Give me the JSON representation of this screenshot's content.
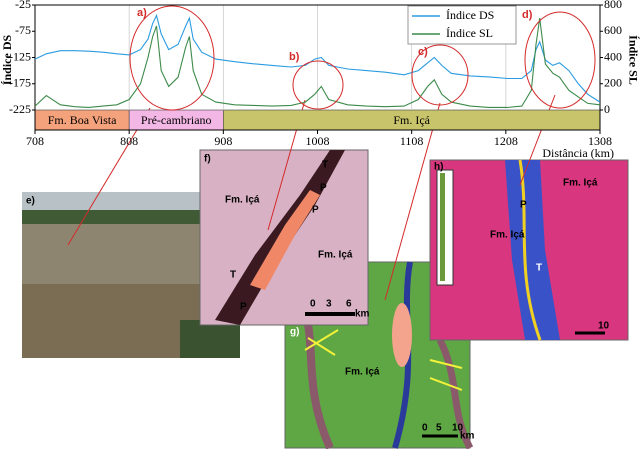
{
  "chart_data": {
    "type": "line",
    "xlabel": "Distância (km)",
    "ylabel": "Índice DS",
    "y2label": "Índice SL",
    "x": [
      708,
      720,
      735,
      750,
      765,
      780,
      795,
      808,
      820,
      828,
      833,
      837,
      842,
      850,
      860,
      868,
      872,
      876,
      885,
      900,
      920,
      940,
      960,
      980,
      995,
      1005,
      1012,
      1020,
      1040,
      1060,
      1080,
      1100,
      1115,
      1125,
      1132,
      1140,
      1150,
      1170,
      1190,
      1210,
      1225,
      1235,
      1240,
      1244,
      1250,
      1258,
      1265,
      1275,
      1285,
      1295,
      1308
    ],
    "series": [
      {
        "name": "Índice DS",
        "color": "#2a9be0",
        "axis": "y",
        "values": [
          -128,
          -118,
          -112,
          -112,
          -113,
          -115,
          -118,
          -120,
          -110,
          -90,
          -60,
          -45,
          -80,
          -110,
          -100,
          -65,
          -50,
          -90,
          -115,
          -128,
          -133,
          -137,
          -140,
          -143,
          -140,
          -128,
          -125,
          -140,
          -147,
          -150,
          -153,
          -158,
          -150,
          -135,
          -125,
          -140,
          -155,
          -160,
          -162,
          -165,
          -165,
          -150,
          -110,
          -95,
          -130,
          -140,
          -135,
          -150,
          -175,
          -195,
          -210
        ]
      },
      {
        "name": "Índice SL",
        "color": "#3c8a4a",
        "axis": "y2",
        "values": [
          30,
          110,
          40,
          25,
          20,
          30,
          40,
          80,
          200,
          400,
          560,
          640,
          300,
          180,
          250,
          480,
          560,
          300,
          120,
          60,
          40,
          35,
          30,
          35,
          60,
          120,
          180,
          80,
          40,
          30,
          25,
          30,
          80,
          180,
          230,
          120,
          60,
          30,
          20,
          20,
          30,
          150,
          500,
          700,
          350,
          280,
          250,
          150,
          100,
          50,
          40
        ]
      }
    ],
    "xlim": [
      708,
      1308
    ],
    "xticks": [
      708,
      808,
      908,
      1008,
      1108,
      1208,
      1308
    ],
    "ylim": [
      -225,
      -25
    ],
    "yticks": [
      -225,
      -175,
      -125,
      -75,
      -25
    ],
    "y2lim": [
      0,
      800
    ],
    "y2ticks": [
      0,
      200,
      400,
      600,
      800
    ],
    "grid": "x",
    "bands": [
      {
        "label": "Fm. Boa Vista",
        "start": 708,
        "end": 808,
        "color": "#f4a27c"
      },
      {
        "label": "Pré-cambriano",
        "start": 808,
        "end": 908,
        "color": "#f2b7e4"
      },
      {
        "label": "Fm. Içá",
        "start": 908,
        "end": 1308,
        "color": "#c8c46c"
      }
    ],
    "annotations": [
      "a)",
      "b)",
      "c)",
      "d)"
    ]
  },
  "panels": {
    "e": {
      "label": "e)"
    },
    "f": {
      "label": "f)",
      "texts": [
        "Fm. Içá",
        "Fm. Içá",
        "T",
        "P",
        "P",
        "T",
        "P"
      ],
      "scale": [
        "0",
        "3",
        "6",
        "km"
      ]
    },
    "g": {
      "label": "g)",
      "texts": [
        "Fm. Içá"
      ],
      "scale": [
        "0",
        "5",
        "10",
        "km"
      ]
    },
    "h": {
      "label": "h)",
      "texts": [
        "Fm. Içá",
        "Fm. Içá",
        "P",
        "T"
      ],
      "scale": [
        "10"
      ]
    }
  }
}
